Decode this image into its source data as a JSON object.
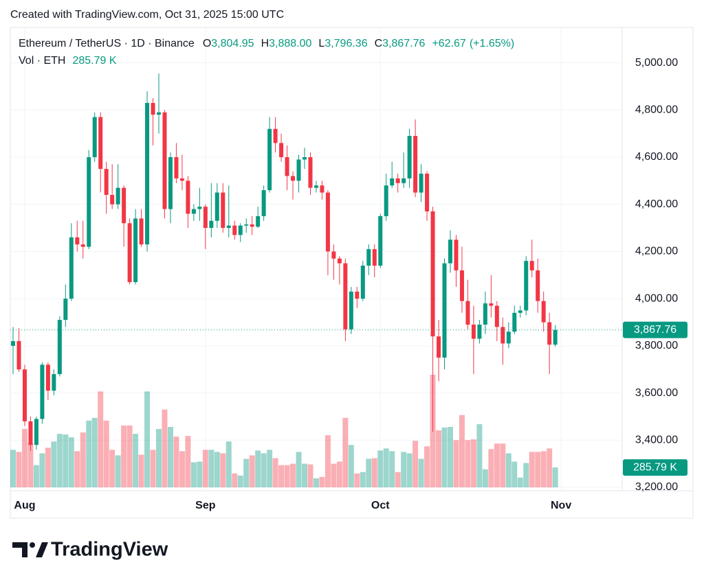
{
  "chart_data": {
    "type": "candlestick",
    "caption": "Created with TradingView.com, Oct 31, 2025 15:00 UTC",
    "legend": {
      "symbol": "Ethereum / TetherUS · 1D · Binance",
      "fields": [
        {
          "key": "O",
          "value": 3804.95,
          "label": "3,804.95"
        },
        {
          "key": "H",
          "value": 3888.0,
          "label": "3,888.00"
        },
        {
          "key": "L",
          "value": 3796.36,
          "label": "3,796.36"
        },
        {
          "key": "C",
          "value": 3867.76,
          "label": "3,867.76"
        }
      ],
      "change": {
        "value": 62.67,
        "label": "+62.67"
      },
      "change_pct": {
        "value": 1.65,
        "label": "(+1.65%)"
      }
    },
    "up_color": "#089981",
    "down_color": "#f23645",
    "series": {
      "open": [
        3800,
        3820,
        3700,
        3480,
        3380,
        3490,
        3720,
        3610,
        3680,
        3910,
        4000,
        4260,
        4230,
        4220,
        4600,
        4770,
        4550,
        4440,
        4400,
        4470,
        4320,
        4070,
        4340,
        4230,
        4830,
        4780,
        4790,
        4380,
        4600,
        4510,
        4500,
        4360,
        4380,
        4390,
        4300,
        4330,
        4450,
        4300,
        4310,
        4270,
        4310,
        4315,
        4305,
        4350,
        4460,
        4720,
        4660,
        4600,
        4520,
        4500,
        4590,
        4600,
        4470,
        4480,
        4450,
        4200,
        4170,
        4150,
        3870,
        4030,
        4000,
        4140,
        4210,
        4140,
        4350,
        4480,
        4510,
        4490,
        4510,
        4690,
        4450,
        4530,
        4370,
        3840,
        3750,
        4150,
        4250,
        4120,
        3990,
        3890,
        3830,
        3890,
        3980,
        3970,
        3880,
        3810,
        3860,
        3940,
        3950,
        4160,
        4120,
        3990,
        3900,
        3804.95
      ],
      "high": [
        3880,
        3875,
        3720,
        3500,
        3500,
        3730,
        3730,
        3700,
        3925,
        4060,
        4320,
        4330,
        4330,
        4630,
        4790,
        4790,
        4580,
        4570,
        4570,
        4480,
        4340,
        4380,
        4380,
        4880,
        4850,
        4955,
        4800,
        4620,
        4660,
        4610,
        4520,
        4400,
        4470,
        4400,
        4490,
        4490,
        4490,
        4480,
        4330,
        4320,
        4340,
        4350,
        4390,
        4480,
        4770,
        4770,
        4700,
        4650,
        4540,
        4610,
        4640,
        4620,
        4500,
        4500,
        4460,
        4230,
        4180,
        4170,
        4050,
        4050,
        4160,
        4230,
        4230,
        4360,
        4530,
        4580,
        4530,
        4620,
        4720,
        4760,
        4570,
        4540,
        4390,
        3910,
        4170,
        4290,
        4270,
        4220,
        4080,
        3970,
        3910,
        4030,
        4100,
        3990,
        3920,
        3900,
        3970,
        3970,
        4180,
        4250,
        4170,
        4030,
        3940,
        3888.0
      ],
      "low": [
        3680,
        3690,
        3460,
        3355,
        3360,
        3470,
        3570,
        3590,
        3670,
        3880,
        3990,
        4200,
        4170,
        4210,
        4580,
        4450,
        4360,
        4380,
        4380,
        4220,
        4060,
        4060,
        4220,
        4200,
        4650,
        4700,
        4340,
        4320,
        4490,
        4460,
        4300,
        4330,
        4330,
        4210,
        4260,
        4300,
        4280,
        4260,
        4250,
        4240,
        4280,
        4270,
        4300,
        4330,
        4450,
        4620,
        4580,
        4460,
        4420,
        4450,
        4550,
        4440,
        4450,
        4420,
        4100,
        4080,
        4060,
        3820,
        3850,
        3960,
        3990,
        4100,
        4090,
        4130,
        4330,
        4470,
        4450,
        4470,
        4470,
        4430,
        4410,
        4330,
        3435,
        3650,
        3700,
        4110,
        4050,
        3940,
        3870,
        3680,
        3810,
        3850,
        3920,
        3820,
        3720,
        3790,
        3850,
        3920,
        3930,
        4090,
        3940,
        3860,
        3680,
        3796.36
      ],
      "close": [
        3820,
        3700,
        3480,
        3380,
        3490,
        3720,
        3610,
        3680,
        3910,
        4000,
        4260,
        4230,
        4220,
        4600,
        4770,
        4550,
        4440,
        4400,
        4470,
        4320,
        4070,
        4340,
        4230,
        4830,
        4780,
        4790,
        4380,
        4600,
        4510,
        4500,
        4360,
        4380,
        4390,
        4300,
        4330,
        4450,
        4300,
        4310,
        4270,
        4310,
        4315,
        4305,
        4350,
        4460,
        4720,
        4660,
        4600,
        4520,
        4500,
        4590,
        4600,
        4470,
        4480,
        4450,
        4200,
        4170,
        4150,
        3870,
        4030,
        4000,
        4140,
        4210,
        4140,
        4350,
        4480,
        4510,
        4490,
        4510,
        4690,
        4450,
        4530,
        4370,
        3840,
        3750,
        4150,
        4250,
        4120,
        3990,
        3890,
        3830,
        3890,
        3980,
        3970,
        3880,
        3810,
        3860,
        3940,
        3950,
        4160,
        4120,
        3990,
        3900,
        3805,
        3867.76
      ]
    },
    "volume": {
      "name": "Vol · ETH",
      "values": [
        540,
        510,
        840,
        640,
        320,
        490,
        570,
        660,
        770,
        760,
        720,
        520,
        790,
        960,
        1000,
        1380,
        960,
        540,
        460,
        890,
        890,
        770,
        470,
        1380,
        540,
        840,
        1120,
        870,
        730,
        520,
        740,
        360,
        370,
        540,
        540,
        510,
        490,
        660,
        200,
        170,
        410,
        460,
        530,
        490,
        540,
        420,
        320,
        320,
        340,
        510,
        340,
        330,
        130,
        150,
        750,
        340,
        370,
        1000,
        610,
        200,
        220,
        410,
        420,
        530,
        560,
        520,
        220,
        510,
        490,
        670,
        410,
        590,
        1620,
        820,
        860,
        870,
        680,
        1040,
        680,
        690,
        910,
        260,
        550,
        630,
        630,
        490,
        370,
        140,
        350,
        510,
        510,
        520,
        560,
        285.79
      ],
      "last_label": "285.79 K"
    },
    "ylim": [
      3200,
      5150
    ],
    "yticks": [
      {
        "value": 3200,
        "label": "3,200.00"
      },
      {
        "value": 3400,
        "label": "3,400.00"
      },
      {
        "value": 3600,
        "label": "3,600.00"
      },
      {
        "value": 3800,
        "label": "3,800.00"
      },
      {
        "value": 4000,
        "label": "4,000.00"
      },
      {
        "value": 4200,
        "label": "4,200.00"
      },
      {
        "value": 4400,
        "label": "4,400.00"
      },
      {
        "value": 4600,
        "label": "4,600.00"
      },
      {
        "value": 4800,
        "label": "4,800.00"
      },
      {
        "value": 5000,
        "label": "5,000.00"
      }
    ],
    "xticks": [
      {
        "value": 2,
        "label": "Aug"
      },
      {
        "value": 33,
        "label": "Sep"
      },
      {
        "value": 63,
        "label": "Oct"
      },
      {
        "value": 94,
        "label": "Nov"
      }
    ],
    "grid": true,
    "brand": "TradingView"
  }
}
